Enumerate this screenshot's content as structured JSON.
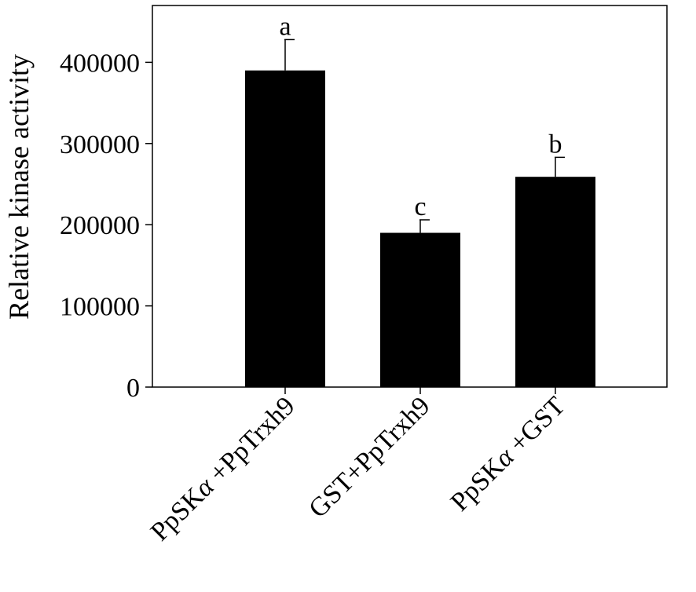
{
  "chart_data": {
    "type": "bar",
    "title": "",
    "xlabel": "",
    "ylabel": "Relative kinase activity",
    "categories": [
      [
        "PpSK",
        "α",
        " +PpTrxh9"
      ],
      [
        "GST+PpTrxh9"
      ],
      [
        "PpSK",
        "α",
        " +GST"
      ]
    ],
    "values": [
      390000,
      190000,
      259000
    ],
    "errors": [
      38000,
      16000,
      24000
    ],
    "significance_labels": [
      "a",
      "c",
      "b"
    ],
    "ylim": [
      0,
      470000
    ],
    "yticks": [
      0,
      100000,
      200000,
      300000,
      400000
    ],
    "ytick_labels": [
      "0",
      "100000",
      "200000",
      "300000",
      "400000"
    ],
    "grid": false,
    "legend": "none",
    "colors": {
      "bar": "#000000",
      "axis": "#000000",
      "background": "#ffffff"
    }
  }
}
